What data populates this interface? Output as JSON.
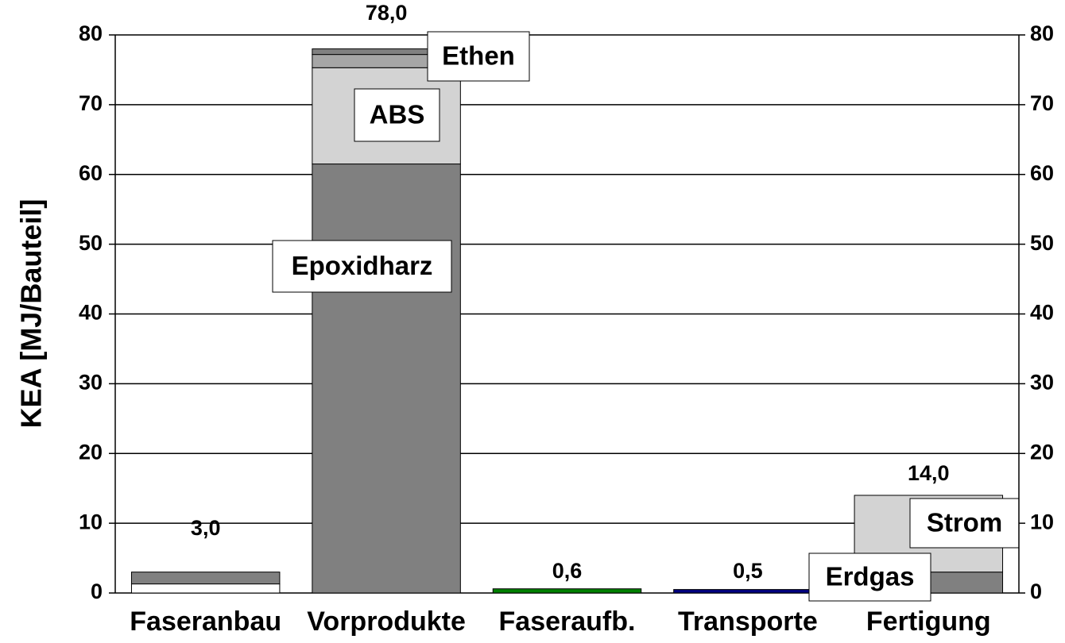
{
  "chart_data": {
    "type": "stacked_bar",
    "y_label": "KEA [MJ/Bauteil]",
    "categories": [
      "Faseranbau",
      "Vorprodukte",
      "Faseraufb.",
      "Transporte",
      "Fertigung"
    ],
    "series": [
      {
        "values": [
          1.3,
          61.5,
          0.6,
          0.5,
          3.0
        ],
        "colors": [
          "#ffffff",
          "#808080",
          "#008000",
          "#000080",
          "#808080"
        ]
      },
      {
        "values": [
          1.7,
          13.8,
          null,
          null,
          11.0
        ],
        "colors": [
          "#808080",
          "#d3d3d3",
          null,
          null,
          "#d3d3d3"
        ]
      },
      {
        "values": [
          null,
          1.9,
          null,
          null,
          null
        ],
        "colors": [
          null,
          "#a6a6a6",
          null,
          null,
          null
        ]
      },
      {
        "values": [
          null,
          0.8,
          null,
          null,
          null
        ],
        "colors": [
          null,
          "#808080",
          null,
          null,
          null
        ]
      }
    ],
    "totals": [
      3.0,
      78.0,
      0.6,
      0.5,
      14.0
    ],
    "total_labels": [
      "3,0",
      "78,0",
      "0,6",
      "0,5",
      "14,0"
    ],
    "annotations": [
      "Ethen",
      "ABS",
      "Epoxidharz",
      "Strom",
      "Erdgas"
    ],
    "ylim": [
      0,
      80
    ],
    "yticks": [
      0,
      10,
      20,
      30,
      40,
      50,
      60,
      70,
      80
    ],
    "y2lim": [
      0,
      80
    ],
    "y2ticks": [
      0,
      10,
      20,
      30,
      40,
      50,
      60,
      70,
      80
    ],
    "grid": true
  }
}
